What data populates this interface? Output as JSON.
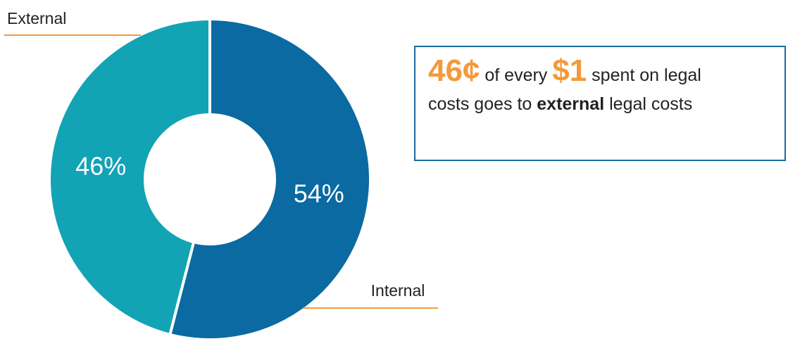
{
  "chart_data": {
    "type": "pie",
    "donut": true,
    "categories": [
      "Internal",
      "External"
    ],
    "values": [
      54,
      46
    ],
    "value_labels": [
      "54%",
      "46%"
    ],
    "colors": [
      "#0a6aa1",
      "#12a3b5"
    ],
    "leader_color": "#f39a3c",
    "title": "",
    "legend": "none"
  },
  "callout": {
    "amount_cents": "46¢",
    "text_a": "of every",
    "amount_dollar": "$1",
    "text_b": "spent on legal",
    "text_c": "costs goes to",
    "emphasis": "external",
    "text_d": "legal costs",
    "accent_color": "#f39a3c",
    "border_color": "#1a6aa0"
  }
}
